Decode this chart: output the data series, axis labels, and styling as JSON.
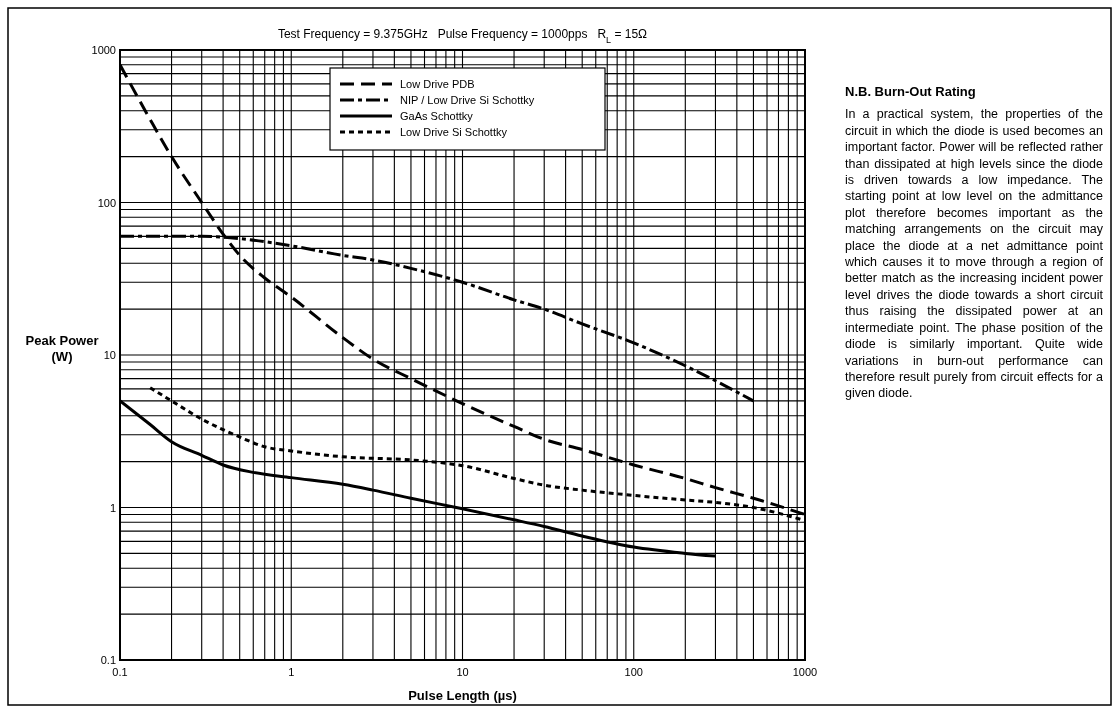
{
  "chart_data": {
    "type": "line",
    "title": "Test Frequency = 9.375GHz   Pulse Frequency = 1000pps   R$_{L}$ = 15Ω",
    "xlabel": "Pulse Length (µs)",
    "ylabel": "Peak Power (W)",
    "log": "xy",
    "grid": true,
    "legend": "top",
    "xlim": [
      0.1,
      1000
    ],
    "ylim": [
      0.1,
      1000
    ],
    "xticks": [
      0.1,
      {
        "value": 0.2,
        "label": null
      },
      {
        "value": 0.3,
        "label": null
      },
      {
        "value": 0.4,
        "label": null
      },
      {
        "value": 0.5,
        "label": null
      },
      {
        "value": 0.6,
        "label": null
      },
      {
        "value": 0.7,
        "label": null
      },
      {
        "value": 0.8,
        "label": null
      },
      {
        "value": 0.9,
        "label": null
      },
      1,
      {
        "value": 2,
        "label": null
      },
      {
        "value": 3,
        "label": null
      },
      {
        "value": 4,
        "label": null
      },
      {
        "value": 5,
        "label": null
      },
      {
        "value": 6,
        "label": null
      },
      {
        "value": 7,
        "label": null
      },
      {
        "value": 8,
        "label": null
      },
      {
        "value": 9,
        "label": null
      },
      10,
      {
        "value": 20,
        "label": null
      },
      {
        "value": 30,
        "label": null
      },
      {
        "value": 40,
        "label": null
      },
      {
        "value": 50,
        "label": null
      },
      {
        "value": 60,
        "label": null
      },
      {
        "value": 70,
        "label": null
      },
      {
        "value": 80,
        "label": null
      },
      {
        "value": 90,
        "label": null
      },
      100,
      {
        "value": 200,
        "label": null
      },
      {
        "value": 300,
        "label": null
      },
      {
        "value": 400,
        "label": null
      },
      {
        "value": 500,
        "label": null
      },
      {
        "value": 600,
        "label": null
      },
      {
        "value": 700,
        "label": null
      },
      {
        "value": 800,
        "label": null
      },
      {
        "value": 900,
        "label": null
      },
      1000
    ],
    "yticks": [
      0.1,
      {
        "value": 0.2,
        "label": null
      },
      {
        "value": 0.3,
        "label": null
      },
      {
        "value": 0.4,
        "label": null
      },
      {
        "value": 0.5,
        "label": null
      },
      {
        "value": 0.6,
        "label": null
      },
      {
        "value": 0.7,
        "label": null
      },
      {
        "value": 0.8,
        "label": null
      },
      {
        "value": 0.9,
        "label": null
      },
      1,
      {
        "value": 2,
        "label": null
      },
      {
        "value": 3,
        "label": null
      },
      {
        "value": 4,
        "label": null
      },
      {
        "value": 5,
        "label": null
      },
      {
        "value": 6,
        "label": null
      },
      {
        "value": 7,
        "label": null
      },
      {
        "value": 8,
        "label": null
      },
      {
        "value": 9,
        "label": null
      },
      10,
      {
        "value": 20,
        "label": null
      },
      {
        "value": 30,
        "label": null
      },
      {
        "value": 40,
        "label": null
      },
      {
        "value": 50,
        "label": null
      },
      {
        "value": 60,
        "label": null
      },
      {
        "value": 70,
        "label": null
      },
      {
        "value": 80,
        "label": null
      },
      {
        "value": 90,
        "label": null
      },
      100,
      {
        "value": 200,
        "label": null
      },
      {
        "value": 300,
        "label": null
      },
      {
        "value": 400,
        "label": null
      },
      {
        "value": 500,
        "label": null
      },
      {
        "value": 600,
        "label": null
      },
      {
        "value": 700,
        "label": null
      },
      {
        "value": 800,
        "label": null
      },
      {
        "value": 900,
        "label": null
      },
      1000
    ],
    "series": [
      {
        "name": "Low Drive PDB",
        "color": "#000000",
        "line_style": "dashed",
        "x": [
          0.1,
          0.15,
          0.2,
          0.3,
          0.4,
          0.5,
          0.7,
          1,
          2,
          3,
          5,
          10,
          20,
          30,
          50,
          100,
          200,
          300,
          500,
          1000
        ],
        "values": [
          800,
          350,
          200,
          100,
          62,
          45,
          32,
          24,
          13,
          9.4,
          7,
          4.8,
          3.4,
          2.8,
          2.4,
          1.9,
          1.55,
          1.35,
          1.15,
          0.9
        ]
      },
      {
        "name": "NIP / Low Drive Si Schottky",
        "color": "#000000",
        "line_style": "dashdot",
        "x": [
          0.1,
          0.2,
          0.3,
          0.5,
          1,
          2,
          3,
          5,
          10,
          20,
          30,
          50,
          100,
          200,
          500
        ],
        "values": [
          60,
          60,
          60,
          58,
          52,
          45,
          42,
          37,
          30,
          23,
          20,
          16,
          12,
          8.5,
          5
        ]
      },
      {
        "name": "GaAs Schottky",
        "color": "#000000",
        "line_style": "solid",
        "x": [
          0.1,
          0.15,
          0.2,
          0.3,
          0.4,
          0.6,
          1,
          2,
          3,
          5,
          10,
          20,
          30,
          50,
          100,
          200,
          300
        ],
        "values": [
          5,
          3.5,
          2.7,
          2.2,
          1.9,
          1.7,
          1.57,
          1.42,
          1.3,
          1.15,
          0.98,
          0.83,
          0.75,
          0.65,
          0.55,
          0.5,
          0.48
        ]
      },
      {
        "name": "Low Drive Si Schottky",
        "color": "#000000",
        "line_style": "dotted",
        "x": [
          0.15,
          0.2,
          0.3,
          0.5,
          0.7,
          1,
          2,
          5,
          8,
          10,
          20,
          30,
          50,
          100,
          200,
          300,
          500,
          1000
        ],
        "values": [
          6.1,
          5,
          3.8,
          2.9,
          2.5,
          2.35,
          2.15,
          2.05,
          1.95,
          1.88,
          1.55,
          1.4,
          1.3,
          1.2,
          1.12,
          1.08,
          1.0,
          0.82
        ]
      }
    ],
    "annotations": [
      "N.B. Burn-Out Rating",
      "In a practical system, the properties of the circuit in which the diode is used becomes an important factor.  Power will be reflected rather than dissipated at high levels since the diode is driven towards a low impedance.  The starting point at low level on the admittance plot therefore becomes important as the matching arrangements on the circuit may place the diode at a net admittance point which causes it to move through a region of better match as the increasing incident power level drives the diode towards a short circuit thus raising the dissipated power at an intermediate point.  The phase position of the diode is similarly important.  Quite wide variations in burn-out performance can therefore result purely from circuit effects for a given diode."
    ]
  }
}
